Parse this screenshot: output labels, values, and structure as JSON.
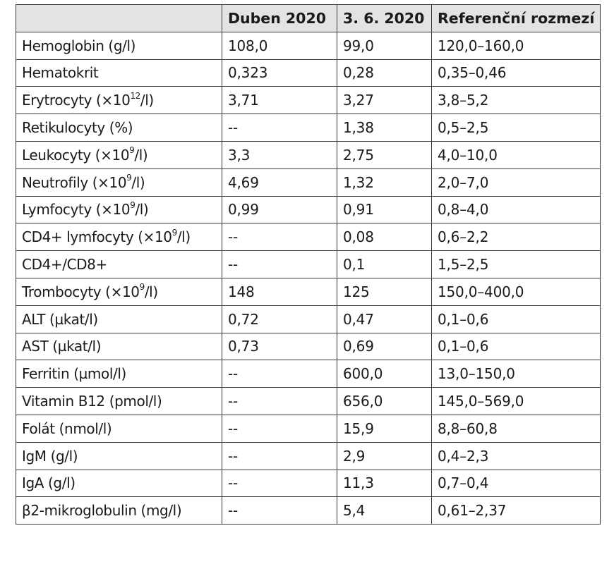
{
  "table": {
    "headers": [
      "",
      "Duben 2020",
      "3. 6. 2020",
      "Referenční rozmezí"
    ],
    "rows": [
      {
        "label": "Hemoglobin (g/l)",
        "label_sup": "",
        "label_suffix": "",
        "apr": "108,0",
        "jun": "99,0",
        "ref": "120,0–160,0"
      },
      {
        "label": "Hematokrit",
        "label_sup": "",
        "label_suffix": "",
        "apr": "0,323",
        "jun": "0,28",
        "ref": "0,35–0,46"
      },
      {
        "label": "Erytrocyty (×10",
        "label_sup": "12",
        "label_suffix": "/l)",
        "apr": "3,71",
        "jun": "3,27",
        "ref": "3,8–5,2"
      },
      {
        "label": "Retikulocyty (%)",
        "label_sup": "",
        "label_suffix": "",
        "apr": "--",
        "jun": "1,38",
        "ref": "0,5–2,5"
      },
      {
        "label": "Leukocyty (×10",
        "label_sup": "9",
        "label_suffix": "/l)",
        "apr": "3,3",
        "jun": "2,75",
        "ref": "4,0–10,0"
      },
      {
        "label": "Neutrofily (×10",
        "label_sup": "9",
        "label_suffix": "/l)",
        "apr": "4,69",
        "jun": "1,32",
        "ref": "2,0–7,0"
      },
      {
        "label": "Lymfocyty (×10",
        "label_sup": "9",
        "label_suffix": "/l)",
        "apr": "0,99",
        "jun": "0,91",
        "ref": "0,8–4,0"
      },
      {
        "label": "CD4+ lymfocyty (×10",
        "label_sup": "9",
        "label_suffix": "/l)",
        "apr": "--",
        "jun": "0,08",
        "ref": "0,6–2,2"
      },
      {
        "label": "CD4+/CD8+",
        "label_sup": "",
        "label_suffix": "",
        "apr": "--",
        "jun": "0,1",
        "ref": "1,5–2,5"
      },
      {
        "label": "Trombocyty (×10",
        "label_sup": "9",
        "label_suffix": "/l)",
        "apr": "148",
        "jun": "125",
        "ref": "150,0–400,0"
      },
      {
        "label": "ALT (µkat/l)",
        "label_sup": "",
        "label_suffix": "",
        "apr": "0,72",
        "jun": "0,47",
        "ref": "0,1–0,6"
      },
      {
        "label": "AST (µkat/l)",
        "label_sup": "",
        "label_suffix": "",
        "apr": "0,73",
        "jun": "0,69",
        "ref": "0,1–0,6"
      },
      {
        "label": "Ferritin (µmol/l)",
        "label_sup": "",
        "label_suffix": "",
        "apr": "--",
        "jun": "600,0",
        "ref": "13,0–150,0"
      },
      {
        "label": "Vitamin B12 (pmol/l)",
        "label_sup": "",
        "label_suffix": "",
        "apr": "--",
        "jun": "656,0",
        "ref": "145,0–569,0"
      },
      {
        "label": "Folát (nmol/l)",
        "label_sup": "",
        "label_suffix": "",
        "apr": "--",
        "jun": "15,9",
        "ref": "8,8–60,8"
      },
      {
        "label": "IgM (g/l)",
        "label_sup": "",
        "label_suffix": "",
        "apr": "--",
        "jun": "2,9",
        "ref": "0,4–2,3"
      },
      {
        "label": "IgA (g/l)",
        "label_sup": "",
        "label_suffix": "",
        "apr": "--",
        "jun": "11,3",
        "ref": "0,7–0,4"
      },
      {
        "label": "β2-mikroglobulin (mg/l)",
        "label_sup": "",
        "label_suffix": "",
        "apr": "--",
        "jun": "5,4",
        "ref": "0,61–2,37"
      }
    ]
  }
}
